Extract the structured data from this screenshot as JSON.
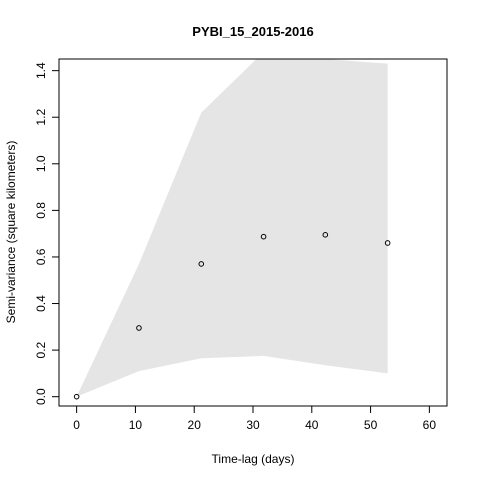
{
  "chart_data": {
    "type": "scatter",
    "title": "PYBI_15_2015-2016",
    "xlabel": "Time-lag (days)",
    "ylabel": "Semi-variance (square kilometers)",
    "xlim": [
      -3,
      63
    ],
    "ylim": [
      -0.04,
      1.45
    ],
    "x_ticks": [
      0,
      10,
      20,
      30,
      40,
      50,
      60
    ],
    "x_tick_labels": [
      "0",
      "10",
      "20",
      "30",
      "40",
      "50",
      "60"
    ],
    "y_ticks": [
      0.0,
      0.2,
      0.4,
      0.6,
      0.8,
      1.0,
      1.2,
      1.4
    ],
    "y_tick_labels": [
      "0.0",
      "0.2",
      "0.4",
      "0.6",
      "0.8",
      "1.0",
      "1.2",
      "1.4"
    ],
    "grid": false,
    "legend": "none",
    "points": {
      "x": [
        0,
        10.6,
        21.2,
        31.8,
        42.3,
        52.9
      ],
      "y": [
        0.0,
        0.295,
        0.57,
        0.687,
        0.695,
        0.66
      ]
    },
    "envelope": {
      "x": [
        0,
        10.6,
        21.2,
        31.8,
        42.3,
        52.9
      ],
      "upper": [
        0.0,
        0.57,
        1.22,
        1.48,
        1.45,
        1.43
      ],
      "lower": [
        0.0,
        0.11,
        0.165,
        0.175,
        0.135,
        0.1
      ]
    },
    "colors": {
      "envelope": "#e5e5e5",
      "points": "#000000",
      "axes": "#000000"
    }
  }
}
